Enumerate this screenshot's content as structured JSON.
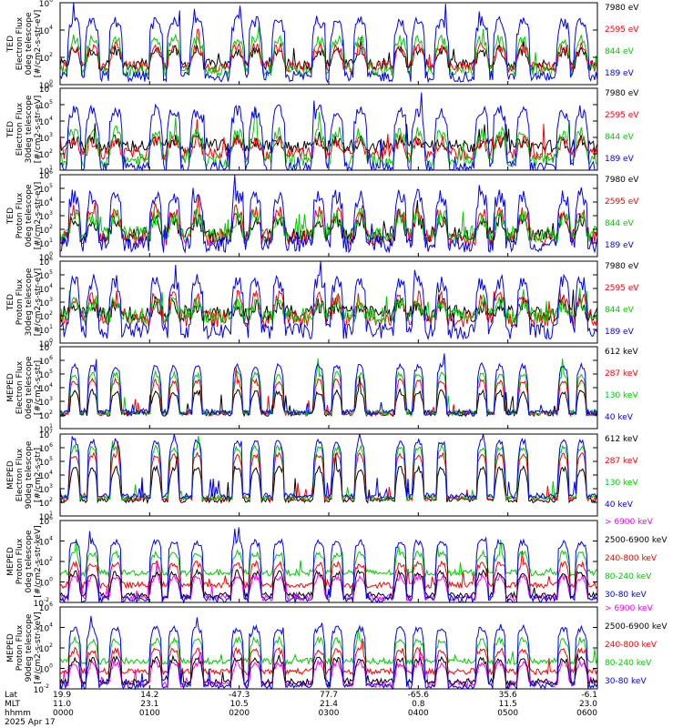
{
  "chart_data": {
    "type": "line",
    "x_time_range": [
      "0000",
      "0600"
    ],
    "xlim_hours": [
      0,
      6
    ],
    "grid": false,
    "panels": [
      {
        "ylabel": [
          "TED",
          "Electron Flux",
          "0deg telescope",
          "[#/cm2-s-str-eV]"
        ],
        "ylim": [
          1,
          1000000
        ],
        "yscale": "log",
        "ytick_exps": [
          0,
          2,
          4,
          6
        ],
        "profile": "e",
        "baseline": [
          30,
          22,
          10,
          4
        ],
        "series": [
          {
            "name": "7980 eV",
            "color": "#000000"
          },
          {
            "name": "2595 eV",
            "color": "#ff0000"
          },
          {
            "name": "844 eV",
            "color": "#00cc00"
          },
          {
            "name": "189 eV",
            "color": "#0000ff"
          }
        ]
      },
      {
        "ylabel": [
          "TED",
          "Electron Flux",
          "30deg telescope",
          "[#/cm2-s-str-eV]"
        ],
        "ylim": [
          10,
          1000000
        ],
        "yscale": "log",
        "ytick_exps": [
          1,
          2,
          3,
          4,
          5,
          6
        ],
        "profile": "e",
        "baseline": [
          300,
          100,
          40,
          15
        ],
        "series": [
          {
            "name": "7980 eV",
            "color": "#000000"
          },
          {
            "name": "2595 eV",
            "color": "#ff0000"
          },
          {
            "name": "844 eV",
            "color": "#00cc00"
          },
          {
            "name": "189 eV",
            "color": "#0000ff"
          }
        ]
      },
      {
        "ylabel": [
          "TED",
          "Proton Flux",
          "0deg telescope",
          "[#/cm2-s-str-eV]"
        ],
        "ylim": [
          1,
          1000000
        ],
        "yscale": "log",
        "ytick_exps": [
          0,
          1,
          2,
          3,
          4,
          5,
          6
        ],
        "profile": "p",
        "baseline": [
          40,
          25,
          40,
          8
        ],
        "series": [
          {
            "name": "7980 eV",
            "color": "#000000"
          },
          {
            "name": "2595 eV",
            "color": "#ff0000"
          },
          {
            "name": "844 eV",
            "color": "#00cc00"
          },
          {
            "name": "189 eV",
            "color": "#0000ff"
          }
        ]
      },
      {
        "ylabel": [
          "TED",
          "Proton Flux",
          "30deg telescope",
          "[#/cm2-s-str-eV]"
        ],
        "ylim": [
          1,
          1000000
        ],
        "yscale": "log",
        "ytick_exps": [
          0,
          1,
          2,
          3,
          4,
          5,
          6
        ],
        "profile": "p",
        "baseline": [
          150,
          60,
          100,
          8
        ],
        "series": [
          {
            "name": "7980 eV",
            "color": "#000000"
          },
          {
            "name": "2595 eV",
            "color": "#ff0000"
          },
          {
            "name": "844 eV",
            "color": "#00cc00"
          },
          {
            "name": "189 eV",
            "color": "#0000ff"
          }
        ]
      },
      {
        "ylabel": [
          "MEPED",
          "Electron Flux",
          "0deg telescope",
          "[#/cm2-s-str]"
        ],
        "ylim": [
          10,
          10000000
        ],
        "yscale": "log",
        "ytick_exps": [
          1,
          2,
          3,
          4,
          5,
          6,
          7
        ],
        "profile": "m",
        "baseline": [
          130,
          140,
          150,
          160
        ],
        "series": [
          {
            "name": "612 keV",
            "color": "#000000"
          },
          {
            "name": "287 keV",
            "color": "#ff0000"
          },
          {
            "name": "130 keV",
            "color": "#00cc00"
          },
          {
            "name": "40 keV",
            "color": "#0000ff"
          }
        ]
      },
      {
        "ylabel": [
          "MEPED",
          "Electron Flux",
          "90deg telescope",
          "[#/cm2-s-str]"
        ],
        "ylim": [
          10,
          10000000
        ],
        "yscale": "log",
        "ytick_exps": [
          1,
          2,
          3,
          4,
          5,
          6,
          7
        ],
        "profile": "m9",
        "baseline": [
          150,
          200,
          220,
          300
        ],
        "series": [
          {
            "name": "612 keV",
            "color": "#000000"
          },
          {
            "name": "287 keV",
            "color": "#ff0000"
          },
          {
            "name": "130 keV",
            "color": "#00cc00"
          },
          {
            "name": "40 keV",
            "color": "#0000ff"
          }
        ]
      },
      {
        "ylabel": [
          "MEPED",
          "Proton Flux",
          "0deg telescope",
          "[#/cm2-s-str-keV]"
        ],
        "ylim": [
          0.01,
          1000000
        ],
        "yscale": "log",
        "ytick_exps": [
          -2,
          0,
          2,
          4,
          6
        ],
        "profile": "mp",
        "baseline": [
          0.03,
          0.05,
          0.5,
          8,
          0.02
        ],
        "series": [
          {
            "name": "> 6900 keV",
            "color": "#ff00ff"
          },
          {
            "name": "2500-6900 keV",
            "color": "#000000"
          },
          {
            "name": "240-800 keV",
            "color": "#ff0000"
          },
          {
            "name": "80-240 keV",
            "color": "#00cc00"
          },
          {
            "name": "30-80 keV",
            "color": "#0000ff"
          }
        ]
      },
      {
        "ylabel": [
          "MEPED",
          "Proton Flux",
          "90deg telescope",
          "[#/cm2-s-str-keV]"
        ],
        "ylim": [
          0.01,
          1000000
        ],
        "yscale": "log",
        "ytick_exps": [
          -2,
          0,
          2,
          4,
          6
        ],
        "profile": "mp",
        "baseline": [
          0.03,
          0.05,
          0.5,
          5,
          0.02
        ],
        "series": [
          {
            "name": "> 6900 keV",
            "color": "#ff00ff"
          },
          {
            "name": "2500-6900 keV",
            "color": "#000000"
          },
          {
            "name": "240-800 keV",
            "color": "#ff0000"
          },
          {
            "name": "80-240 keV",
            "color": "#00cc00"
          },
          {
            "name": "30-80 keV",
            "color": "#0000ff"
          }
        ]
      }
    ],
    "events_hours": [
      0.16,
      0.36,
      0.62,
      1.07,
      1.27,
      1.53,
      1.98,
      2.18,
      2.44,
      2.89,
      3.09,
      3.35,
      3.8,
      4.0,
      4.26,
      4.71,
      4.91,
      5.17,
      5.62,
      5.82
    ],
    "x_axis": {
      "row_labels": [
        "Lat",
        "MLT",
        "hhmm",
        "2025 Apr 17"
      ],
      "ticks": [
        {
          "lat": "19.9",
          "mlt": "11.0",
          "hhmm": "0000"
        },
        {
          "lat": "14.2",
          "mlt": "23.1",
          "hhmm": "0100"
        },
        {
          "lat": "-47.3",
          "mlt": "10.5",
          "hhmm": "0200"
        },
        {
          "lat": "77.7",
          "mlt": "21.4",
          "hhmm": "0300"
        },
        {
          "lat": "-65.6",
          "mlt": "0.8",
          "hhmm": "0400"
        },
        {
          "lat": "35.6",
          "mlt": "11.5",
          "hhmm": "0500"
        },
        {
          "lat": "-6.1",
          "mlt": "23.0",
          "hhmm": "0600"
        }
      ]
    }
  }
}
